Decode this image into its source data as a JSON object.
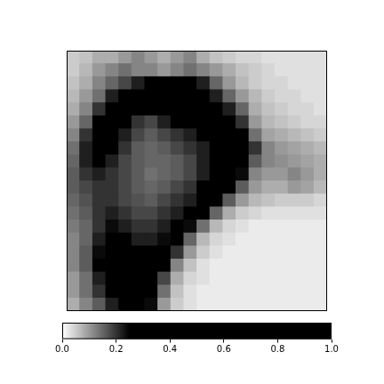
{
  "chart_data": {
    "type": "heatmap",
    "tick_labels": false,
    "cells": [
      [
        0.05,
        0.06,
        0.08,
        0.08,
        0.1,
        0.12,
        0.1,
        0.08,
        0.1,
        0.12,
        0.08,
        0.06,
        0.05,
        0.04,
        0.04,
        0.03,
        0.03,
        0.03,
        0.03,
        0.03
      ],
      [
        0.05,
        0.07,
        0.1,
        0.12,
        0.14,
        0.12,
        0.12,
        0.1,
        0.12,
        0.14,
        0.12,
        0.1,
        0.08,
        0.06,
        0.05,
        0.04,
        0.03,
        0.03,
        0.03,
        0.03
      ],
      [
        0.06,
        0.08,
        0.12,
        0.15,
        0.18,
        0.22,
        0.25,
        0.3,
        0.28,
        0.25,
        0.22,
        0.15,
        0.1,
        0.07,
        0.05,
        0.04,
        0.04,
        0.03,
        0.03,
        0.03
      ],
      [
        0.07,
        0.1,
        0.14,
        0.22,
        0.28,
        0.32,
        0.35,
        0.38,
        0.36,
        0.32,
        0.3,
        0.22,
        0.15,
        0.1,
        0.07,
        0.05,
        0.04,
        0.04,
        0.03,
        0.03
      ],
      [
        0.08,
        0.12,
        0.2,
        0.3,
        0.32,
        0.28,
        0.25,
        0.3,
        0.35,
        0.38,
        0.35,
        0.3,
        0.22,
        0.15,
        0.08,
        0.06,
        0.05,
        0.04,
        0.04,
        0.03
      ],
      [
        0.1,
        0.15,
        0.28,
        0.34,
        0.26,
        0.2,
        0.18,
        0.22,
        0.25,
        0.28,
        0.3,
        0.32,
        0.3,
        0.2,
        0.1,
        0.07,
        0.06,
        0.05,
        0.04,
        0.04
      ],
      [
        0.12,
        0.2,
        0.3,
        0.3,
        0.22,
        0.18,
        0.16,
        0.18,
        0.2,
        0.22,
        0.25,
        0.3,
        0.34,
        0.28,
        0.14,
        0.09,
        0.08,
        0.07,
        0.06,
        0.05
      ],
      [
        0.14,
        0.22,
        0.28,
        0.26,
        0.2,
        0.16,
        0.15,
        0.16,
        0.18,
        0.2,
        0.22,
        0.28,
        0.35,
        0.32,
        0.2,
        0.12,
        0.1,
        0.09,
        0.08,
        0.07
      ],
      [
        0.15,
        0.22,
        0.25,
        0.22,
        0.18,
        0.16,
        0.15,
        0.15,
        0.16,
        0.18,
        0.22,
        0.28,
        0.35,
        0.3,
        0.16,
        0.12,
        0.11,
        0.1,
        0.09,
        0.08
      ],
      [
        0.16,
        0.2,
        0.22,
        0.2,
        0.18,
        0.16,
        0.14,
        0.15,
        0.16,
        0.18,
        0.22,
        0.3,
        0.32,
        0.24,
        0.12,
        0.1,
        0.1,
        0.12,
        0.1,
        0.08
      ],
      [
        0.16,
        0.18,
        0.2,
        0.2,
        0.18,
        0.16,
        0.15,
        0.16,
        0.18,
        0.2,
        0.25,
        0.3,
        0.28,
        0.16,
        0.1,
        0.08,
        0.08,
        0.1,
        0.09,
        0.07
      ],
      [
        0.15,
        0.17,
        0.2,
        0.2,
        0.18,
        0.17,
        0.16,
        0.18,
        0.2,
        0.22,
        0.28,
        0.26,
        0.16,
        0.1,
        0.07,
        0.06,
        0.05,
        0.05,
        0.05,
        0.04
      ],
      [
        0.14,
        0.16,
        0.2,
        0.22,
        0.2,
        0.18,
        0.18,
        0.2,
        0.22,
        0.26,
        0.25,
        0.15,
        0.08,
        0.05,
        0.04,
        0.03,
        0.03,
        0.03,
        0.03,
        0.03
      ],
      [
        0.13,
        0.15,
        0.2,
        0.24,
        0.22,
        0.2,
        0.2,
        0.22,
        0.25,
        0.24,
        0.14,
        0.07,
        0.04,
        0.03,
        0.02,
        0.02,
        0.02,
        0.02,
        0.02,
        0.02
      ],
      [
        0.12,
        0.15,
        0.22,
        0.26,
        0.25,
        0.22,
        0.22,
        0.24,
        0.25,
        0.15,
        0.07,
        0.04,
        0.03,
        0.02,
        0.02,
        0.02,
        0.02,
        0.02,
        0.02,
        0.02
      ],
      [
        0.12,
        0.16,
        0.24,
        0.3,
        0.3,
        0.28,
        0.26,
        0.28,
        0.2,
        0.1,
        0.05,
        0.03,
        0.02,
        0.02,
        0.02,
        0.02,
        0.02,
        0.02,
        0.02,
        0.02
      ],
      [
        0.12,
        0.16,
        0.25,
        0.34,
        0.36,
        0.34,
        0.3,
        0.25,
        0.12,
        0.06,
        0.03,
        0.02,
        0.02,
        0.02,
        0.02,
        0.02,
        0.02,
        0.02,
        0.02,
        0.02
      ],
      [
        0.1,
        0.14,
        0.22,
        0.34,
        0.4,
        0.38,
        0.32,
        0.18,
        0.08,
        0.04,
        0.03,
        0.02,
        0.02,
        0.02,
        0.02,
        0.02,
        0.02,
        0.02,
        0.02,
        0.02
      ],
      [
        0.1,
        0.14,
        0.2,
        0.3,
        0.38,
        0.4,
        0.3,
        0.14,
        0.06,
        0.03,
        0.02,
        0.02,
        0.02,
        0.02,
        0.02,
        0.02,
        0.02,
        0.02,
        0.02,
        0.02
      ],
      [
        0.08,
        0.12,
        0.16,
        0.22,
        0.3,
        0.32,
        0.24,
        0.1,
        0.05,
        0.03,
        0.02,
        0.02,
        0.02,
        0.02,
        0.02,
        0.02,
        0.02,
        0.02,
        0.02,
        0.02
      ]
    ],
    "colorbar": {
      "range": [
        0,
        1
      ],
      "ticks": [
        {
          "value": 0,
          "label": "0.0"
        },
        {
          "value": 0.2,
          "label": "0.2"
        },
        {
          "value": 0.4,
          "label": "0.4"
        },
        {
          "value": 0.6,
          "label": "0.6"
        },
        {
          "value": 0.8,
          "label": "0.8"
        },
        {
          "value": 1,
          "label": "1.0"
        }
      ]
    }
  }
}
